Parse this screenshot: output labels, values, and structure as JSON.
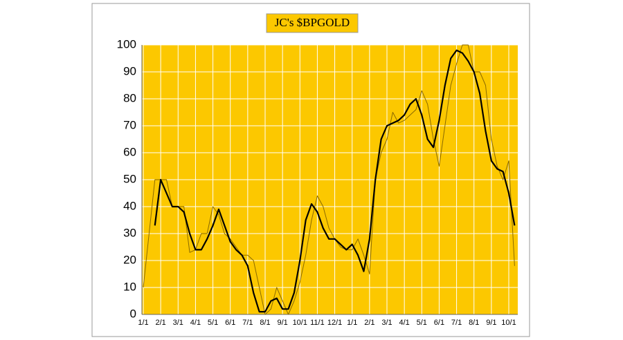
{
  "chart_data": {
    "type": "line",
    "title": "JC's $BPGOLD",
    "categories": [
      "1/1",
      null,
      null,
      "2/1",
      null,
      null,
      "3/1",
      null,
      null,
      "4/1",
      null,
      null,
      "5/1",
      null,
      null,
      "6/1",
      null,
      null,
      "7/1",
      null,
      null,
      "8/1",
      null,
      null,
      "9/1",
      null,
      null,
      "10/1",
      null,
      null,
      "11/1",
      null,
      null,
      "12/1",
      null,
      null,
      "1/1",
      null,
      null,
      "2/1",
      null,
      null,
      "3/1",
      null,
      null,
      "4/1",
      null,
      null,
      "5/1",
      null,
      null,
      "6/1",
      null,
      null,
      "7/1",
      null,
      null,
      "8/1",
      null,
      null,
      "9/1",
      null,
      null,
      "10/1",
      null
    ],
    "series": [
      {
        "color": "#8a6a00",
        "width": 1,
        "values": [
          10,
          30,
          50,
          50,
          50,
          40,
          40,
          40,
          23,
          24,
          30,
          30,
          40,
          37,
          30,
          28,
          25,
          22,
          22,
          20,
          10,
          0,
          2,
          10,
          5,
          0,
          5,
          12,
          22,
          35,
          44,
          40,
          32,
          28,
          25,
          24,
          24,
          28,
          22,
          15,
          50,
          60,
          65,
          75,
          71,
          72,
          74,
          76,
          83,
          78,
          65,
          55,
          70,
          85,
          93,
          100,
          100,
          90,
          90,
          85,
          65,
          55,
          50,
          57,
          18
        ]
      },
      {
        "color": "#000000",
        "width": 2.2,
        "values": [
          null,
          null,
          33,
          50,
          45,
          40,
          40,
          38,
          30,
          24,
          24,
          28,
          33,
          39,
          33,
          27,
          24,
          22,
          18,
          8,
          1,
          1,
          5,
          6,
          2,
          2,
          8,
          20,
          35,
          41,
          38,
          32,
          28,
          28,
          26,
          24,
          26,
          22,
          16,
          28,
          50,
          65,
          70,
          71,
          72,
          74,
          78,
          80,
          74,
          65,
          62,
          72,
          85,
          95,
          98,
          97,
          94,
          90,
          82,
          68,
          57,
          54,
          53,
          45,
          33
        ]
      }
    ],
    "ylim": [
      0,
      100
    ],
    "yticks": [
      0,
      10,
      20,
      30,
      40,
      50,
      60,
      70,
      80,
      90,
      100
    ],
    "grid": true,
    "background": "#fcc800"
  }
}
